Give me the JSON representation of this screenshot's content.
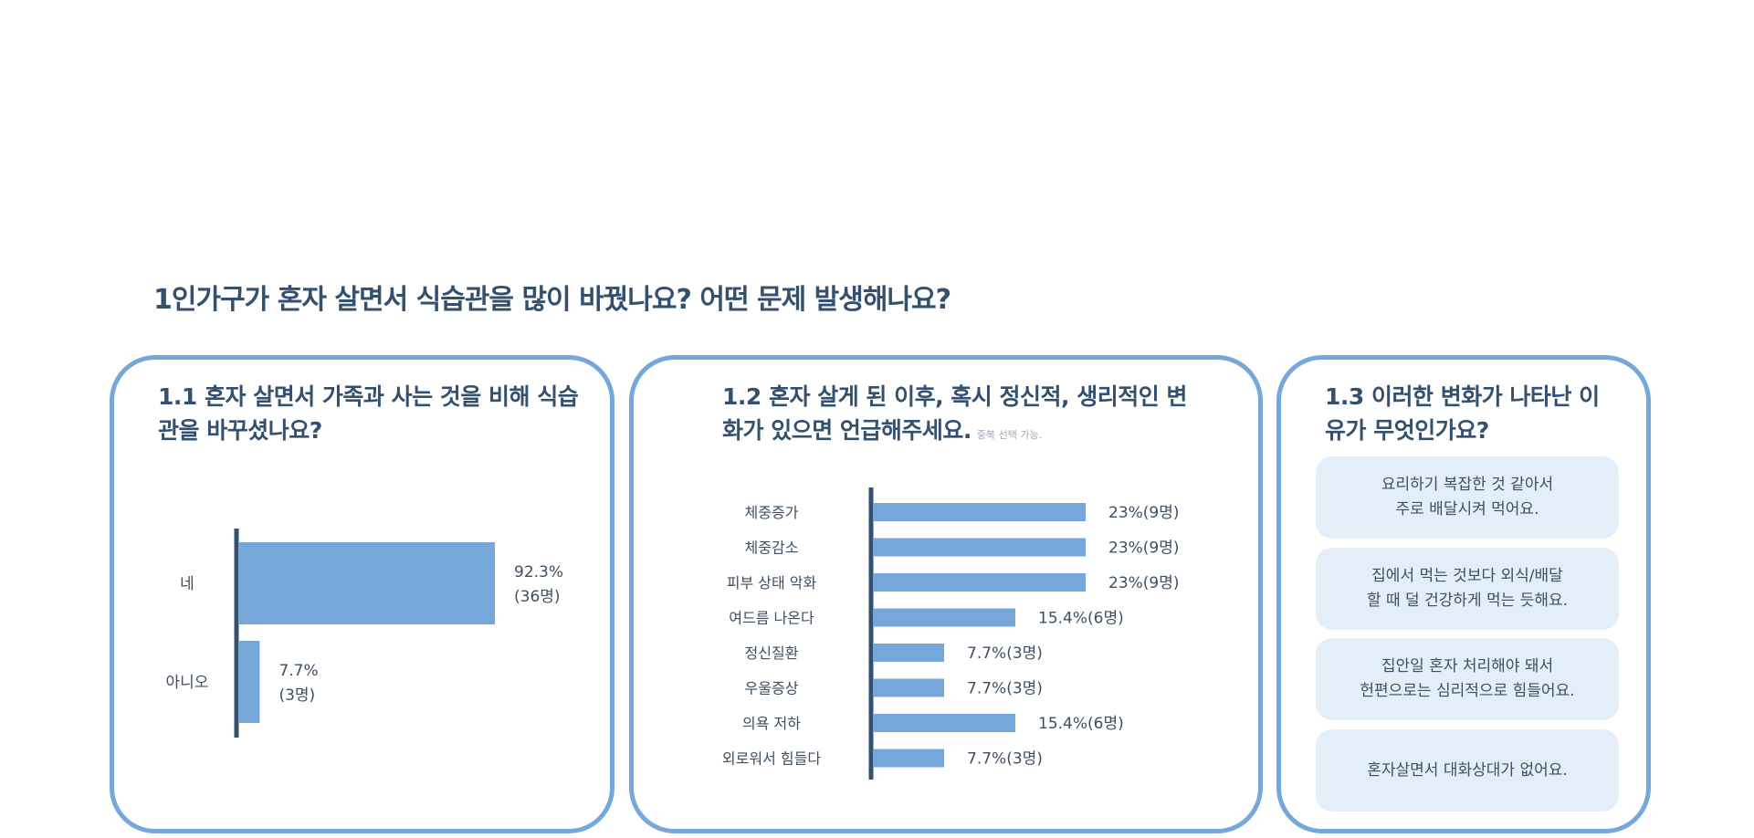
{
  "page": {
    "title": "1인가구가 혼자 살면서 식습관을 많이 바꿨나요? 어떤 문제 발생해나요?"
  },
  "colors": {
    "bar": "#76a7da",
    "axis": "#34506f",
    "border": "#76a7da",
    "reason_bg": "#e4eef9"
  },
  "q1": {
    "title_line1": "1.1 혼자 살면서 가족과 사는 것을 비해 식습",
    "title_line2": "관을 바꾸셨나요?"
  },
  "q2": {
    "title_line1": "1.2 혼자 살게 된 이후, 혹시 정신적, 생리적인 변",
    "title_line2": "화가 있으면 언급해주세요.",
    "note": "중복 선택 가능."
  },
  "q3": {
    "title_line1": "1.3 이러한 변화가 나타난 이",
    "title_line2": "유가 무엇인가요?",
    "reasons": [
      "요리하기 복잡한 것 같아서\n주로 배달시켜 먹어요.",
      "집에서 먹는 것보다 외식/배달\n할 때 덜 건강하게 먹는 듯해요.",
      "집안일 혼자 처리해야 돼서\n헌편으로는 심리적으로 힘들어요.",
      "혼자살면서 대화상대가 없어요."
    ]
  },
  "chart_data": [
    {
      "type": "bar",
      "orientation": "horizontal",
      "categories": [
        "네",
        "아니오"
      ],
      "values": [
        92.3,
        7.7
      ],
      "counts": [
        36,
        3
      ],
      "labels": [
        [
          "92.3%",
          "(36명)"
        ],
        [
          "7.7%",
          "(3명)"
        ]
      ],
      "unit": "%"
    },
    {
      "type": "bar",
      "orientation": "horizontal",
      "categories": [
        "체중증가",
        "체중감소",
        "피부 상태 악화",
        "여드름 나온다",
        "정신질환",
        "우울증상",
        "의욕 저하",
        "외로워서 힘들다"
      ],
      "values": [
        23,
        23,
        23,
        15.4,
        7.7,
        7.7,
        15.4,
        7.7
      ],
      "counts": [
        9,
        9,
        9,
        6,
        3,
        3,
        6,
        3
      ],
      "labels": [
        "23%(9명)",
        "23%(9명)",
        "23%(9명)",
        "15.4%(6명)",
        "7.7%(3명)",
        "7.7%(3명)",
        "15.4%(6명)",
        "7.7%(3명)"
      ],
      "unit": "%"
    }
  ]
}
